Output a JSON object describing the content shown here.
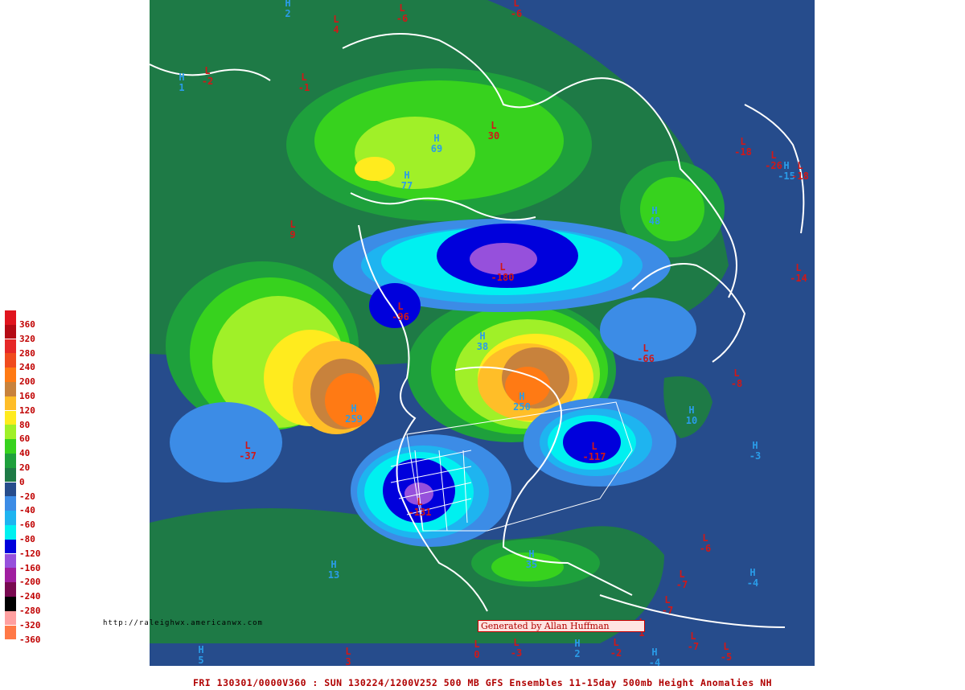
{
  "colors": {
    "ocean": "#264c8c",
    "coast": "#ffffff",
    "low_text": "#d01818",
    "high_text": "#2a9ce8"
  },
  "legend": [
    {
      "label": "360",
      "color": "#e0141e"
    },
    {
      "label": "320",
      "color": "#b40a14"
    },
    {
      "label": "280",
      "color": "#e62828"
    },
    {
      "label": "240",
      "color": "#f04b1e"
    },
    {
      "label": "200",
      "color": "#ff7a14"
    },
    {
      "label": "160",
      "color": "#c8823c"
    },
    {
      "label": "120",
      "color": "#ffbe28"
    },
    {
      "label": "80",
      "color": "#ffeb1e"
    },
    {
      "label": "60",
      "color": "#a0f028"
    },
    {
      "label": "40",
      "color": "#37d21e"
    },
    {
      "label": "20",
      "color": "#1ea03c"
    },
    {
      "label": "0",
      "color": "#1e7a46"
    },
    {
      "label": "-20",
      "color": "#264c8c"
    },
    {
      "label": "-40",
      "color": "#3c8ce6"
    },
    {
      "label": "-60",
      "color": "#1eb4f0"
    },
    {
      "label": "-80",
      "color": "#00f0f0"
    },
    {
      "label": "-120",
      "color": "#0000dc"
    },
    {
      "label": "-160",
      "color": "#9650dc"
    },
    {
      "label": "-200",
      "color": "#a01ea0"
    },
    {
      "label": "-240",
      "color": "#780a50"
    },
    {
      "label": "-280",
      "color": "#000000"
    },
    {
      "label": "-320",
      "color": "#ffa0a0"
    },
    {
      "label": "-360",
      "color": "#ff7846"
    }
  ],
  "markers": [
    {
      "type": "H",
      "value": "2"
    },
    {
      "type": "L",
      "value": "4"
    },
    {
      "type": "L",
      "value": "-6"
    },
    {
      "type": "L",
      "value": "-6"
    },
    {
      "type": "L",
      "value": "-2"
    },
    {
      "type": "L",
      "value": "-1"
    },
    {
      "type": "H",
      "value": "1"
    },
    {
      "type": "H",
      "value": "69"
    },
    {
      "type": "L",
      "value": "30"
    },
    {
      "type": "H",
      "value": "77"
    },
    {
      "type": "L",
      "value": "-18"
    },
    {
      "type": "L",
      "value": "-26"
    },
    {
      "type": "H",
      "value": "-15"
    },
    {
      "type": "L",
      "value": "-18"
    },
    {
      "type": "H",
      "value": "48"
    },
    {
      "type": "L",
      "value": "9"
    },
    {
      "type": "L",
      "value": "-180"
    },
    {
      "type": "L",
      "value": "-14"
    },
    {
      "type": "L",
      "value": "-96"
    },
    {
      "type": "H",
      "value": "38"
    },
    {
      "type": "L",
      "value": "-66"
    },
    {
      "type": "L",
      "value": "-8"
    },
    {
      "type": "H",
      "value": "259"
    },
    {
      "type": "H",
      "value": "250"
    },
    {
      "type": "H",
      "value": "10"
    },
    {
      "type": "L",
      "value": "-37"
    },
    {
      "type": "L",
      "value": "-117"
    },
    {
      "type": "H",
      "value": "-3"
    },
    {
      "type": "L",
      "value": "-131"
    },
    {
      "type": "L",
      "value": "-6"
    },
    {
      "type": "H",
      "value": "13"
    },
    {
      "type": "H",
      "value": "35"
    },
    {
      "type": "L",
      "value": "-7"
    },
    {
      "type": "H",
      "value": "-4"
    },
    {
      "type": "L",
      "value": "-7"
    },
    {
      "type": "H",
      "value": "5"
    },
    {
      "type": "L",
      "value": "3"
    },
    {
      "type": "L",
      "value": "0"
    },
    {
      "type": "L",
      "value": "-3"
    },
    {
      "type": "H",
      "value": "2"
    },
    {
      "type": "L",
      "value": "-2"
    },
    {
      "type": "H",
      "value": "-4"
    },
    {
      "type": "L",
      "value": "-7"
    },
    {
      "type": "L",
      "value": "-5"
    },
    {
      "type": "L",
      "value": "1"
    }
  ],
  "url": "http://raleighwx.americanwx.com",
  "credit": "Generated by Allan Huffman",
  "footer": "FRI 130301/0000V360 : SUN 130224/1200V252  500 MB GFS Ensembles 11-15day 500mb Height Anomalies NH"
}
